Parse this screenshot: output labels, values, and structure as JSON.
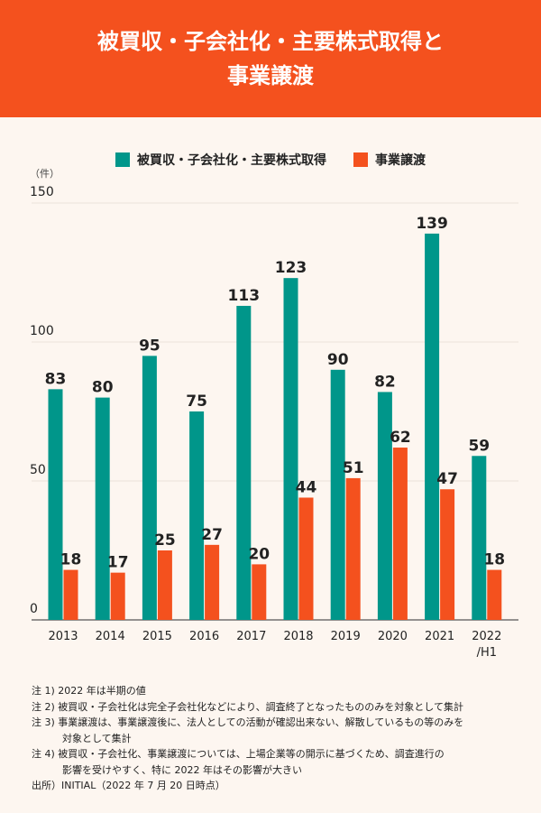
{
  "header": {
    "title_line1": "被買収・子会社化・主要株式取得と",
    "title_line2": "事業譲渡"
  },
  "chart_data": {
    "type": "bar",
    "title": "被買収・子会社化・主要株式取得と事業譲渡",
    "ylabel": "（件）",
    "ylim": [
      0,
      150
    ],
    "yticks": [
      0,
      50,
      100,
      150
    ],
    "grid": true,
    "legend_position": "top-center",
    "categories": [
      "2013",
      "2014",
      "2015",
      "2016",
      "2017",
      "2018",
      "2019",
      "2020",
      "2021",
      "2022\n/H1"
    ],
    "category_lines": [
      [
        "2013"
      ],
      [
        "2014"
      ],
      [
        "2015"
      ],
      [
        "2016"
      ],
      [
        "2017"
      ],
      [
        "2018"
      ],
      [
        "2019"
      ],
      [
        "2020"
      ],
      [
        "2021"
      ],
      [
        "2022",
        "/H1"
      ]
    ],
    "series": [
      {
        "name": "被買収・子会社化・主要株式取得",
        "color": "#00968a",
        "values": [
          83,
          80,
          95,
          75,
          113,
          123,
          90,
          82,
          139,
          59
        ]
      },
      {
        "name": "事業譲渡",
        "color": "#f4511e",
        "values": [
          18,
          17,
          25,
          27,
          20,
          44,
          51,
          62,
          47,
          18
        ]
      }
    ]
  },
  "notes": [
    {
      "text": "注 1) 2022 年は半期の値"
    },
    {
      "text": "注 2) 被買収・子会社化は完全子会社化などにより、調査終了となったもののみを対象として集計"
    },
    {
      "text": "注 3) 事業譲渡は、事業譲渡後に、法人としての活動が確認出来ない、解散しているもの等のみを",
      "cont": "対象として集計"
    },
    {
      "text": "注 4) 被買収・子会社化、事業譲渡については、上場企業等の開示に基づくため、調査進行の",
      "cont": "影響を受けやすく、特に 2022 年はその影響が大きい"
    },
    {
      "text": "出所）INITIAL（2022 年 7 月 20 日時点）"
    }
  ]
}
